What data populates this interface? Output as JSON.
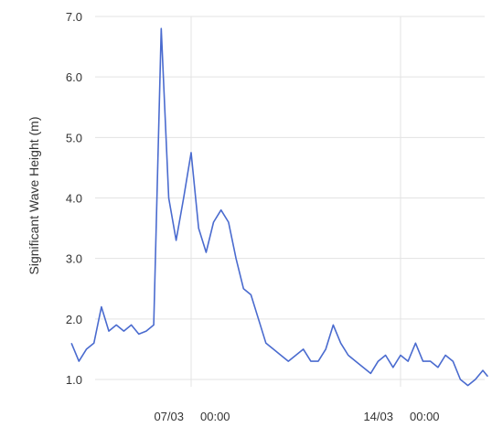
{
  "chart_data": {
    "type": "line",
    "title": "",
    "xlabel": "",
    "ylabel": "Significant Wave Height (m)",
    "ylim": [
      1.0,
      7.0
    ],
    "yticks": [
      "1.0",
      "2.0",
      "3.0",
      "4.0",
      "5.0",
      "6.0",
      "7.0"
    ],
    "xticks": [
      {
        "date": "07/03",
        "time": "00:00"
      },
      {
        "date": "14/03",
        "time": "00:00"
      }
    ],
    "grid": true,
    "line_color": "#4a6bcf",
    "series": [
      {
        "name": "",
        "x": [
          "03/03 00:00",
          "03/03 06:00",
          "03/03 12:00",
          "03/03 18:00",
          "04/03 00:00",
          "04/03 06:00",
          "04/03 12:00",
          "04/03 18:00",
          "05/03 00:00",
          "05/03 06:00",
          "05/03 12:00",
          "05/03 18:00",
          "06/03 00:00",
          "06/03 06:00",
          "06/03 12:00",
          "06/03 18:00",
          "07/03 00:00",
          "07/03 06:00",
          "07/03 12:00",
          "07/03 18:00",
          "08/03 00:00",
          "08/03 06:00",
          "08/03 12:00",
          "08/03 18:00",
          "09/03 00:00",
          "09/03 06:00",
          "09/03 12:00",
          "09/03 18:00",
          "10/03 00:00",
          "10/03 06:00",
          "10/03 12:00",
          "10/03 18:00",
          "11/03 00:00",
          "11/03 06:00",
          "11/03 12:00",
          "11/03 18:00",
          "12/03 00:00",
          "12/03 06:00",
          "12/03 12:00",
          "12/03 18:00",
          "13/03 00:00",
          "13/03 06:00",
          "13/03 12:00",
          "13/03 18:00",
          "14/03 00:00",
          "14/03 06:00",
          "14/03 12:00",
          "14/03 18:00",
          "15/03 00:00",
          "15/03 06:00",
          "15/03 12:00",
          "15/03 18:00",
          "16/03 00:00",
          "16/03 06:00",
          "16/03 12:00",
          "16/03 18:00",
          "16/03 22:00"
        ],
        "y": [
          1.6,
          1.3,
          1.5,
          1.6,
          2.2,
          1.8,
          1.9,
          1.8,
          1.9,
          1.75,
          1.8,
          1.9,
          6.8,
          4.0,
          3.3,
          4.0,
          4.75,
          3.5,
          3.1,
          3.6,
          3.8,
          3.6,
          3.0,
          2.5,
          2.4,
          2.0,
          1.6,
          1.5,
          1.4,
          1.3,
          1.4,
          1.5,
          1.3,
          1.3,
          1.5,
          1.9,
          1.6,
          1.4,
          1.3,
          1.2,
          1.1,
          1.3,
          1.4,
          1.2,
          1.4,
          1.3,
          1.6,
          1.3,
          1.3,
          1.2,
          1.4,
          1.3,
          1.0,
          0.9,
          1.0,
          1.15,
          1.05
        ]
      }
    ]
  }
}
